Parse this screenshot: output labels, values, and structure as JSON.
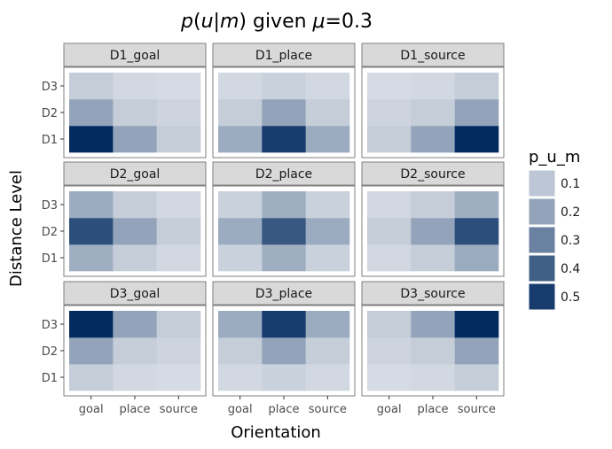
{
  "chart_data": {
    "type": "heatmap",
    "title": "p(u|m) given μ=0.3",
    "title_parts": {
      "var": "p",
      "open": "(",
      "u": "u",
      "bar": "|",
      "m": "m",
      "close": ")",
      "given": " given ",
      "mu": "μ",
      "eq": "=0.3"
    },
    "xlabel": "Orientation",
    "ylabel": "Distance Level",
    "x_categories": [
      "goal",
      "place",
      "source"
    ],
    "y_categories": [
      "D1",
      "D2",
      "D3"
    ],
    "legend": {
      "title": "p_u_m",
      "placement": "right",
      "breaks": [
        {
          "label": "0.1",
          "value": 0.1
        },
        {
          "label": "0.2",
          "value": 0.2
        },
        {
          "label": "0.3",
          "value": 0.3
        },
        {
          "label": "0.4",
          "value": 0.4
        },
        {
          "label": "0.5",
          "value": 0.5
        }
      ]
    },
    "colors": {
      "low": "#e6e9ee",
      "high": "#022b60",
      "strip_bg": "#d9d9d9",
      "border": "#7f7f7f"
    },
    "facets": [
      {
        "label": "D1_goal",
        "values": [
          [
            0.55,
            0.2,
            0.08
          ],
          [
            0.2,
            0.08,
            0.06
          ],
          [
            0.08,
            0.05,
            0.04
          ]
        ]
      },
      {
        "label": "D1_place",
        "values": [
          [
            0.18,
            0.5,
            0.18
          ],
          [
            0.08,
            0.2,
            0.08
          ],
          [
            0.05,
            0.07,
            0.05
          ]
        ]
      },
      {
        "label": "D1_source",
        "values": [
          [
            0.08,
            0.2,
            0.55
          ],
          [
            0.06,
            0.08,
            0.2
          ],
          [
            0.04,
            0.05,
            0.08
          ]
        ]
      },
      {
        "label": "D2_goal",
        "values": [
          [
            0.17,
            0.08,
            0.05
          ],
          [
            0.45,
            0.2,
            0.08
          ],
          [
            0.18,
            0.08,
            0.05
          ]
        ]
      },
      {
        "label": "D2_place",
        "values": [
          [
            0.07,
            0.17,
            0.07
          ],
          [
            0.18,
            0.42,
            0.18
          ],
          [
            0.07,
            0.17,
            0.07
          ]
        ]
      },
      {
        "label": "D2_source",
        "values": [
          [
            0.05,
            0.08,
            0.18
          ],
          [
            0.08,
            0.2,
            0.45
          ],
          [
            0.05,
            0.08,
            0.17
          ]
        ]
      },
      {
        "label": "D3_goal",
        "values": [
          [
            0.08,
            0.05,
            0.04
          ],
          [
            0.2,
            0.08,
            0.06
          ],
          [
            0.55,
            0.2,
            0.08
          ]
        ]
      },
      {
        "label": "D3_place",
        "values": [
          [
            0.05,
            0.07,
            0.05
          ],
          [
            0.08,
            0.2,
            0.08
          ],
          [
            0.18,
            0.5,
            0.18
          ]
        ]
      },
      {
        "label": "D3_source",
        "values": [
          [
            0.04,
            0.05,
            0.08
          ],
          [
            0.06,
            0.08,
            0.2
          ],
          [
            0.08,
            0.2,
            0.55
          ]
        ]
      }
    ]
  }
}
